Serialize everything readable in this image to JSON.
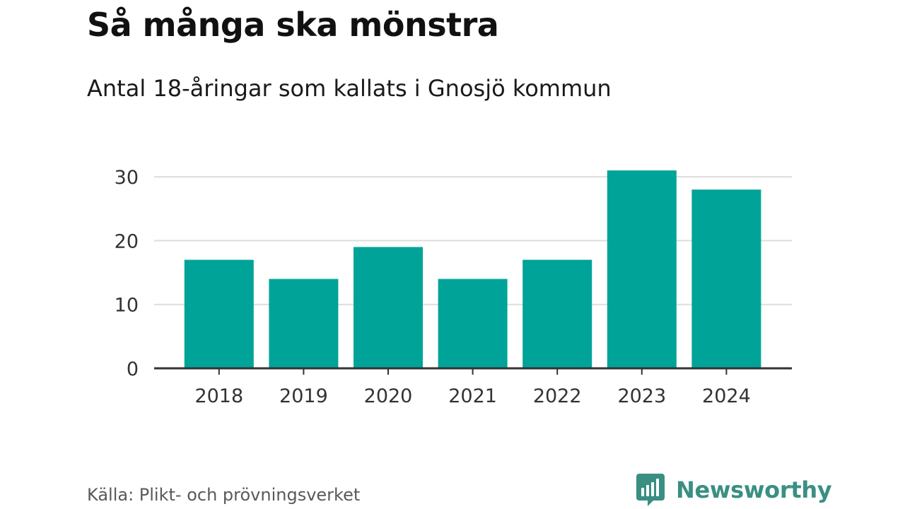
{
  "title": "Så många ska mönstra",
  "subtitle": "Antal 18-åringar som kallats i Gnosjö kommun",
  "source": "Källa: Plikt- och prövningsverket",
  "brand": {
    "name": "Newsworthy",
    "logo_icon": "newsworthy-logo-icon",
    "color": "#3a8f82"
  },
  "colors": {
    "bar": "#00a398",
    "grid": "#dddddd",
    "axis": "#333333",
    "tick_text": "#333333"
  },
  "chart_data": {
    "type": "bar",
    "categories": [
      "2018",
      "2019",
      "2020",
      "2021",
      "2022",
      "2023",
      "2024"
    ],
    "values": [
      17,
      14,
      19,
      14,
      17,
      31,
      28
    ],
    "title": "Så många ska mönstra",
    "subtitle": "Antal 18-åringar som kallats i Gnosjö kommun",
    "xlabel": "",
    "ylabel": "",
    "ylim": [
      0,
      31
    ],
    "yticks": [
      0,
      10,
      20,
      30
    ],
    "grid": true,
    "legend": "none"
  }
}
